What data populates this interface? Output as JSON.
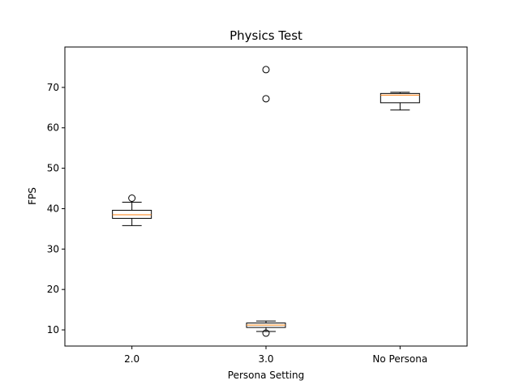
{
  "chart_data": {
    "type": "box",
    "title": "Physics Test",
    "xlabel": "Persona Setting",
    "ylabel": "FPS",
    "categories": [
      "2.0",
      "3.0",
      "No Persona"
    ],
    "ylim": [
      6,
      80
    ],
    "yticks": [
      10,
      20,
      30,
      40,
      50,
      60,
      70
    ],
    "grid": false,
    "box_color": "#000000",
    "median_color": "#ff7f0e",
    "boxes": [
      {
        "category": "2.0",
        "whisker_low": 35.8,
        "q1": 37.6,
        "median": 38.5,
        "q3": 39.6,
        "whisker_high": 41.6,
        "outliers": [
          42.6
        ]
      },
      {
        "category": "3.0",
        "whisker_low": 9.6,
        "q1": 10.6,
        "median": 11.2,
        "q3": 11.7,
        "whisker_high": 12.2,
        "outliers": [
          9.2,
          67.2,
          74.4
        ]
      },
      {
        "category": "No Persona",
        "whisker_low": 64.4,
        "q1": 66.2,
        "median": 68.1,
        "q3": 68.5,
        "whisker_high": 68.8,
        "outliers": []
      }
    ]
  }
}
